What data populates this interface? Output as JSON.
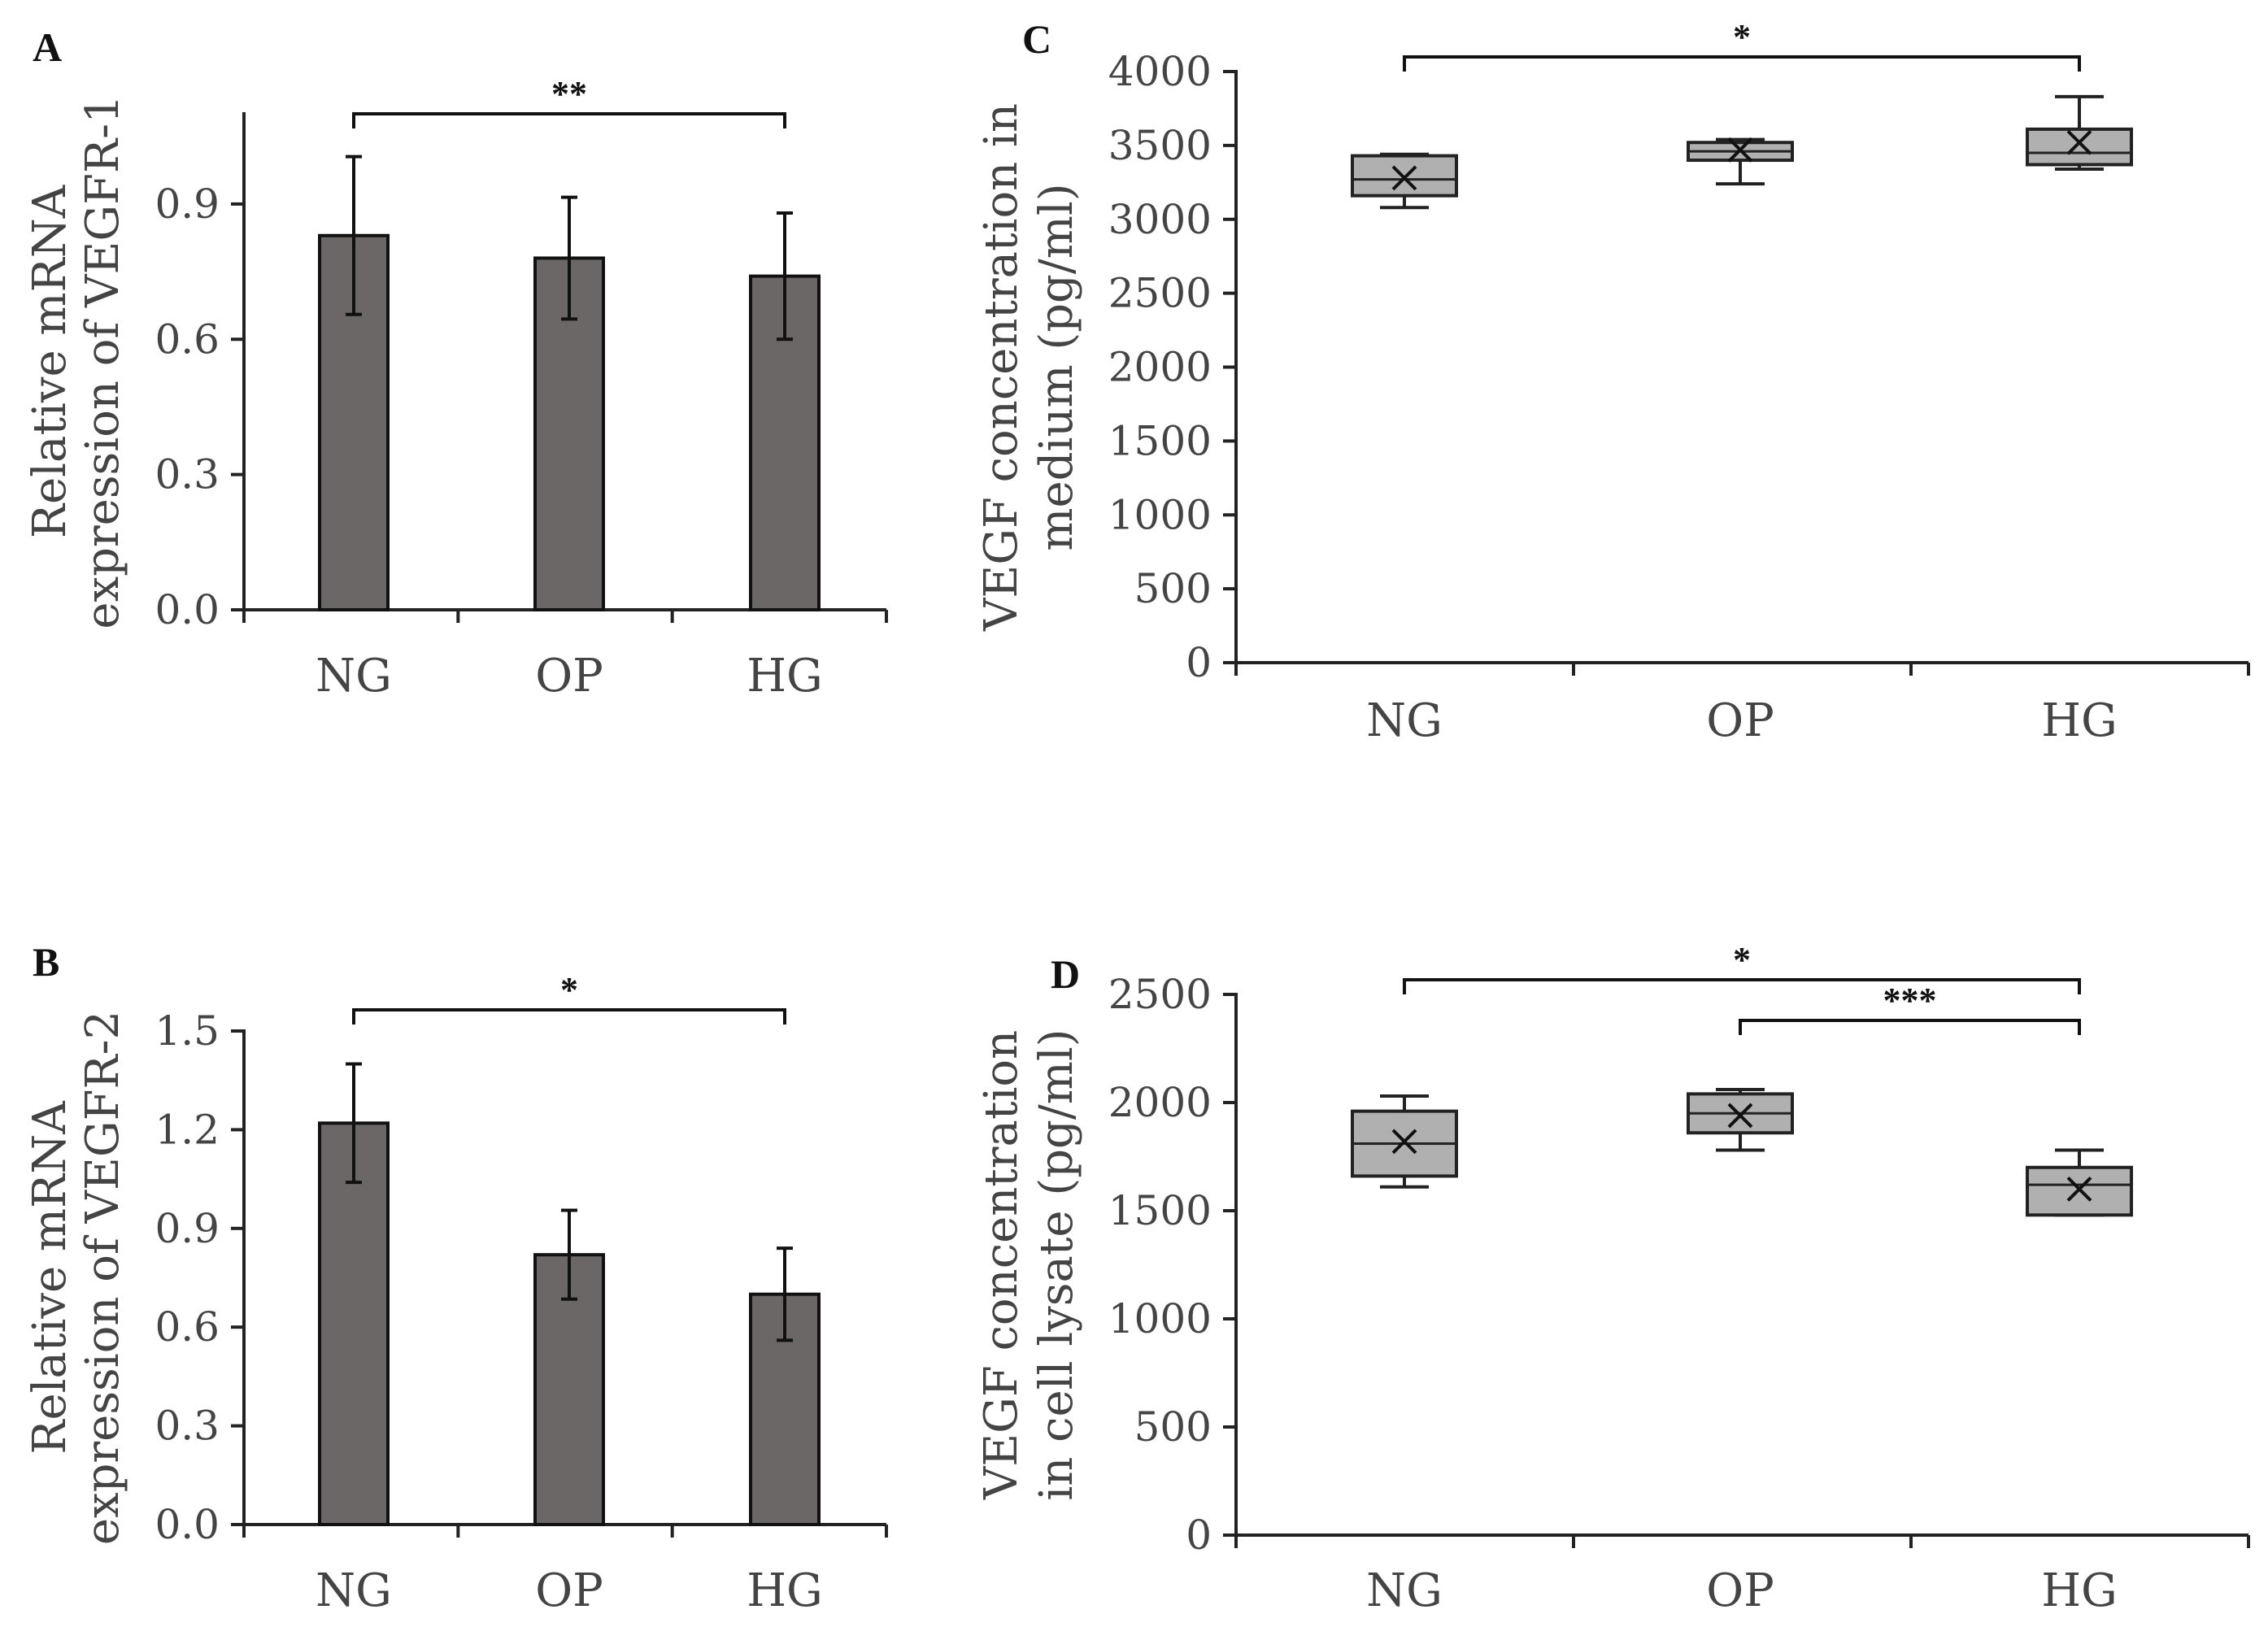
{
  "chart_data": [
    {
      "panel": "A",
      "type": "bar",
      "title": "",
      "xlabel": "",
      "ylabel": [
        "Relative mRNA",
        "expression of VEGFR-1"
      ],
      "categories": [
        "NG",
        "OP",
        "HG"
      ],
      "values": [
        0.83,
        0.78,
        0.74
      ],
      "errors": [
        0.175,
        0.135,
        0.14
      ],
      "ylim": [
        0,
        1.1
      ],
      "yticks": [
        0.0,
        0.3,
        0.6,
        0.9
      ],
      "ytick_labels": [
        "0.0",
        "0.3",
        "0.6",
        "0.9"
      ],
      "bar_color": "#6b6767",
      "significance": [
        {
          "from": "NG",
          "to": "HG",
          "label": "**"
        }
      ]
    },
    {
      "panel": "B",
      "type": "bar",
      "title": "",
      "xlabel": "",
      "ylabel": [
        "Relative mRNA",
        "expression of VEGFR-2"
      ],
      "categories": [
        "NG",
        "OP",
        "HG"
      ],
      "values": [
        1.22,
        0.82,
        0.7
      ],
      "errors": [
        0.18,
        0.135,
        0.14
      ],
      "ylim": [
        0,
        1.5
      ],
      "yticks": [
        0.0,
        0.3,
        0.6,
        0.9,
        1.2,
        1.5
      ],
      "ytick_labels": [
        "0.0",
        "0.3",
        "0.6",
        "0.9",
        "1.2",
        "1.5"
      ],
      "bar_color": "#6b6767",
      "significance": [
        {
          "from": "NG",
          "to": "HG",
          "label": "*"
        }
      ]
    },
    {
      "panel": "C",
      "type": "box",
      "title": "",
      "xlabel": "",
      "ylabel": [
        "VEGF concentration in",
        "medium (pg/ml)"
      ],
      "categories": [
        "NG",
        "OP",
        "HG"
      ],
      "boxes": [
        {
          "min": 3080,
          "q1": 3160,
          "median": 3270,
          "q3": 3430,
          "max": 3440,
          "mean": 3280
        },
        {
          "min": 3240,
          "q1": 3400,
          "median": 3460,
          "q3": 3520,
          "max": 3540,
          "mean": 3470
        },
        {
          "min": 3340,
          "q1": 3370,
          "median": 3450,
          "q3": 3610,
          "max": 3830,
          "mean": 3520
        }
      ],
      "ylim": [
        0,
        4000
      ],
      "yticks": [
        0,
        500,
        1000,
        1500,
        2000,
        2500,
        3000,
        3500,
        4000
      ],
      "ytick_labels": [
        "0",
        "500",
        "1000",
        "1500",
        "2000",
        "2500",
        "3000",
        "3500",
        "4000"
      ],
      "box_color": "#b0b0b0",
      "significance": [
        {
          "from": "NG",
          "to": "HG",
          "label": "*"
        }
      ]
    },
    {
      "panel": "D",
      "type": "box",
      "title": "",
      "xlabel": "",
      "ylabel": [
        "VEGF concentration",
        "in cell lysate (pg/ml)"
      ],
      "categories": [
        "NG",
        "OP",
        "HG"
      ],
      "boxes": [
        {
          "min": 1610,
          "q1": 1660,
          "median": 1810,
          "q3": 1960,
          "max": 2030,
          "mean": 1820
        },
        {
          "min": 1780,
          "q1": 1860,
          "median": 1950,
          "q3": 2040,
          "max": 2060,
          "mean": 1940
        },
        {
          "min": 1480,
          "q1": 1480,
          "median": 1620,
          "q3": 1700,
          "max": 1780,
          "mean": 1600
        }
      ],
      "ylim": [
        0,
        2500
      ],
      "yticks": [
        0,
        500,
        1000,
        1500,
        2000,
        2500
      ],
      "ytick_labels": [
        "0",
        "500",
        "1000",
        "1500",
        "2000",
        "2500"
      ],
      "box_color": "#b0b0b0",
      "significance": [
        {
          "from": "NG",
          "to": "HG",
          "label": "*"
        },
        {
          "from": "OP",
          "to": "HG",
          "label": "***"
        }
      ]
    }
  ]
}
